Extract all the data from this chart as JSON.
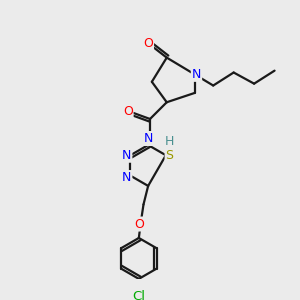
{
  "background_color": "#ebebeb",
  "bond_color": "#1a1a1a",
  "atom_colors": {
    "O": "#ff0000",
    "N": "#0000ff",
    "S": "#999900",
    "Cl": "#00aa00",
    "H": "#4a9090",
    "C": "#1a1a1a"
  },
  "lw": 1.6,
  "fs": 9.0
}
